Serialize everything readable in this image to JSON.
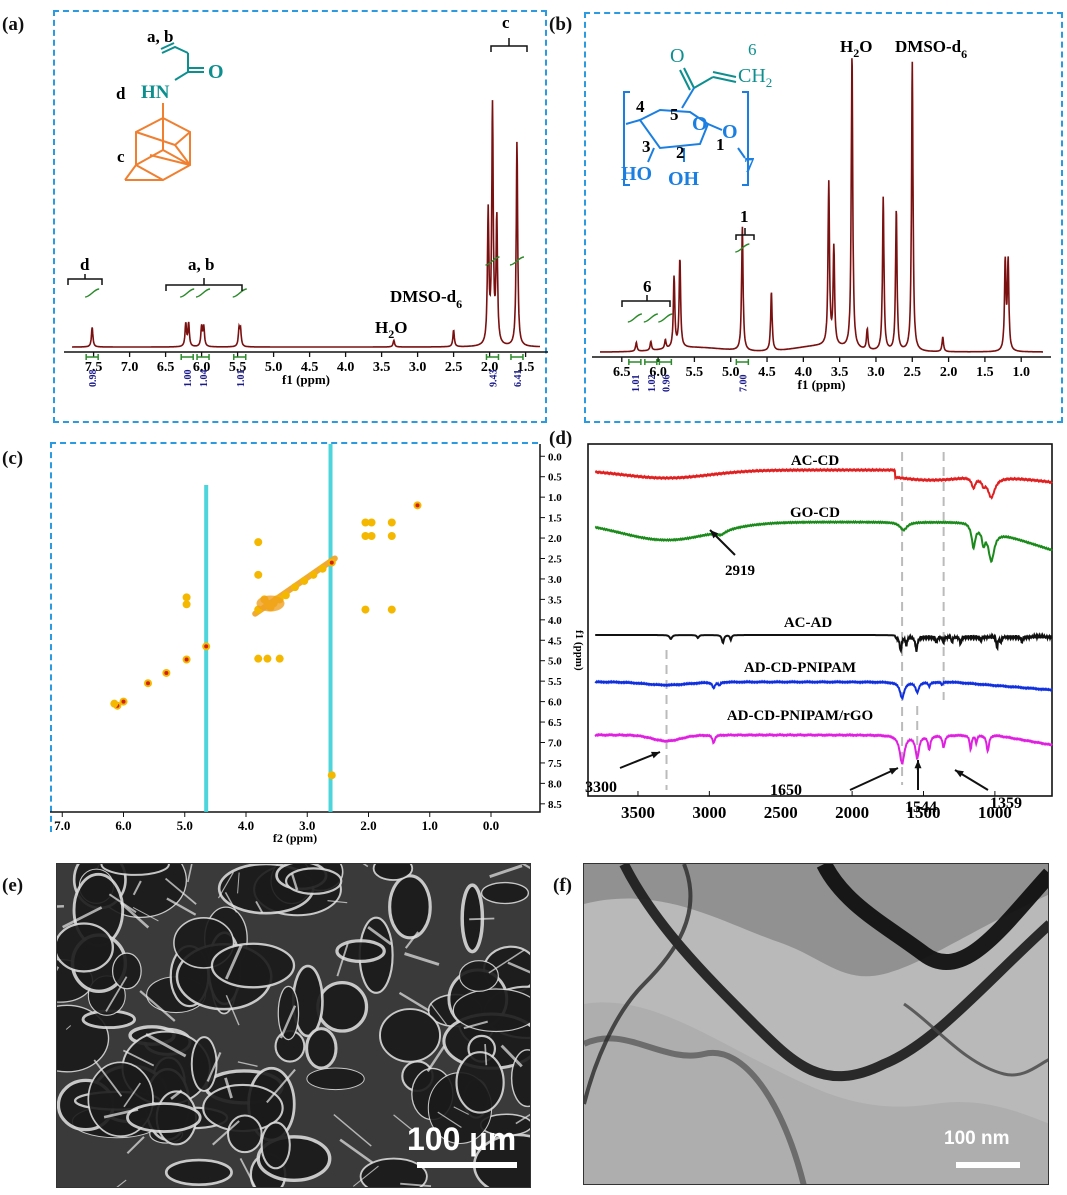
{
  "panels": {
    "a": "(a)",
    "b": "(b)",
    "c": "(c)",
    "d": "(d)",
    "e": "(e)",
    "f": "(f)"
  },
  "colors": {
    "spectrum": "#7a1010",
    "integration": "#2b8a2b",
    "frame": "#2a9be0",
    "teal": "#0e8f8f",
    "orange": "#f08030",
    "blue": "#1a7fe0",
    "ac_cd": "#e02020",
    "go_cd": "#1a8a1a",
    "ac_ad": "#111111",
    "ad_cd_pnipam": "#1030e0",
    "ad_cd_pnipam_rgo": "#e020e0"
  },
  "chart_data": [
    {
      "type": "line",
      "panel": "a",
      "xlabel": "f1 (ppm)",
      "xlim": [
        7.8,
        1.3
      ],
      "x_ticks": [
        "7.5",
        "7.0",
        "6.5",
        "6.0",
        "5.5",
        "5.0",
        "4.5",
        "4.0",
        "3.5",
        "3.0",
        "2.5",
        "2.0",
        "1.5"
      ],
      "peaks": [
        {
          "ppm": 7.52,
          "height": 0.06
        },
        {
          "ppm": 6.22,
          "height": 0.07
        },
        {
          "ppm": 6.18,
          "height": 0.07
        },
        {
          "ppm": 6.0,
          "height": 0.06
        },
        {
          "ppm": 5.97,
          "height": 0.06
        },
        {
          "ppm": 5.48,
          "height": 0.05
        },
        {
          "ppm": 5.46,
          "height": 0.05
        },
        {
          "ppm": 3.33,
          "height": 0.02
        },
        {
          "ppm": 2.5,
          "height": 0.05
        },
        {
          "ppm": 2.02,
          "height": 0.4
        },
        {
          "ppm": 1.96,
          "height": 0.72
        },
        {
          "ppm": 1.9,
          "height": 0.38
        },
        {
          "ppm": 1.62,
          "height": 0.62
        }
      ],
      "integrals": [
        {
          "ppm": 7.52,
          "value": "0.98"
        },
        {
          "ppm": 6.2,
          "value": "1.00"
        },
        {
          "ppm": 5.98,
          "value": "1.04"
        },
        {
          "ppm": 5.47,
          "value": "1.01"
        },
        {
          "ppm": 1.96,
          "value": "9.43"
        },
        {
          "ppm": 1.62,
          "value": "6.41"
        }
      ],
      "annotations": {
        "d": "d",
        "ab": "a, b",
        "c": "c",
        "h2o_base": "H",
        "h2o_sub": "2",
        "h2o_end": "O",
        "dmso_base": "DMSO-d",
        "dmso_sub": "6"
      },
      "structure": {
        "ab": "a, b",
        "nh": "HN",
        "o": "O",
        "d": "d",
        "c": "c"
      }
    },
    {
      "type": "line",
      "panel": "b",
      "xlabel": "f1 (ppm)",
      "xlim": [
        6.8,
        0.7
      ],
      "x_ticks": [
        "6.5",
        "6.0",
        "5.5",
        "5.0",
        "4.5",
        "4.0",
        "3.5",
        "3.0",
        "2.5",
        "2.0",
        "1.5",
        "1.0"
      ],
      "peaks": [
        {
          "ppm": 6.3,
          "height": 0.03
        },
        {
          "ppm": 6.1,
          "height": 0.03
        },
        {
          "ppm": 5.9,
          "height": 0.03
        },
        {
          "ppm": 5.78,
          "height": 0.24
        },
        {
          "ppm": 5.7,
          "height": 0.3
        },
        {
          "ppm": 4.84,
          "height": 0.42
        },
        {
          "ppm": 4.44,
          "height": 0.2
        },
        {
          "ppm": 3.65,
          "height": 0.55
        },
        {
          "ppm": 3.58,
          "height": 0.33
        },
        {
          "ppm": 3.33,
          "height": 1.0
        },
        {
          "ppm": 3.12,
          "height": 0.07
        },
        {
          "ppm": 2.9,
          "height": 0.52
        },
        {
          "ppm": 2.72,
          "height": 0.48
        },
        {
          "ppm": 2.5,
          "height": 0.98
        },
        {
          "ppm": 2.08,
          "height": 0.05
        },
        {
          "ppm": 1.22,
          "height": 0.3
        },
        {
          "ppm": 1.18,
          "height": 0.3
        }
      ],
      "integrals": [
        {
          "ppm": 6.32,
          "value": "1.01"
        },
        {
          "ppm": 6.1,
          "value": "1.02"
        },
        {
          "ppm": 5.9,
          "value": "0.96"
        },
        {
          "ppm": 4.84,
          "value": "7.00"
        }
      ],
      "annotations": {
        "six": "6",
        "one": "1",
        "h2o_base": "H",
        "h2o_sub": "2",
        "h2o_end": "O",
        "dmso_base": "DMSO-d",
        "dmso_sub": "6"
      },
      "structure": {
        "o": "O",
        "six": "6",
        "ch2": "CH",
        "ch2_sub": "2",
        "n4": "4",
        "n5": "5",
        "n3": "3",
        "n2": "2",
        "n1": "1",
        "ho": "HO",
        "oh": "OH",
        "o_ring": "O",
        "o_link": "O",
        "seven": "7"
      }
    },
    {
      "type": "scatter",
      "panel": "c",
      "xlabel": "f2 (ppm)",
      "ylabel": "f1 (ppm)",
      "xlim": [
        7.2,
        -0.8
      ],
      "ylim": [
        -0.3,
        8.7
      ],
      "x_ticks": [
        "7.0",
        "6.0",
        "5.0",
        "4.0",
        "3.0",
        "2.0",
        "1.0",
        "0.0"
      ],
      "y_ticks": [
        "0.0",
        "0.5",
        "1.0",
        "1.5",
        "2.0",
        "2.5",
        "3.0",
        "3.5",
        "4.0",
        "4.5",
        "5.0",
        "5.5",
        "6.0",
        "6.5",
        "7.0",
        "7.5",
        "8.0",
        "8.5"
      ],
      "vertical_streaks": [
        4.65,
        2.62
      ],
      "spots": [
        [
          1.2,
          1.2
        ],
        [
          2.6,
          2.6
        ],
        [
          2.75,
          2.75
        ],
        [
          2.9,
          2.9
        ],
        [
          3.05,
          3.05
        ],
        [
          3.2,
          3.2
        ],
        [
          3.35,
          3.4
        ],
        [
          3.5,
          3.5
        ],
        [
          3.65,
          3.6
        ],
        [
          3.8,
          3.75
        ],
        [
          3.6,
          3.7
        ],
        [
          3.7,
          3.5
        ],
        [
          3.55,
          3.6
        ],
        [
          3.45,
          3.5
        ],
        [
          4.97,
          4.97
        ],
        [
          4.65,
          4.65
        ],
        [
          5.3,
          5.3
        ],
        [
          5.6,
          5.55
        ],
        [
          6.1,
          6.1
        ],
        [
          6.15,
          6.05
        ],
        [
          6.0,
          6.0
        ],
        [
          4.97,
          3.45
        ],
        [
          4.97,
          3.62
        ],
        [
          3.45,
          4.95
        ],
        [
          3.65,
          4.95
        ],
        [
          3.8,
          4.95
        ],
        [
          2.05,
          1.62
        ],
        [
          2.05,
          1.95
        ],
        [
          1.62,
          1.62
        ],
        [
          1.62,
          1.95
        ],
        [
          1.95,
          1.62
        ],
        [
          1.95,
          1.95
        ],
        [
          2.05,
          3.75
        ],
        [
          1.62,
          3.75
        ],
        [
          2.6,
          7.8
        ],
        [
          3.8,
          2.9
        ],
        [
          3.8,
          2.1
        ]
      ]
    },
    {
      "type": "line",
      "panel": "d",
      "xlim": [
        3850,
        600
      ],
      "x_ticks": [
        "3500",
        "3000",
        "2500",
        "2000",
        "1500",
        "1000"
      ],
      "series": [
        {
          "name": "AC-CD"
        },
        {
          "name": "GO-CD"
        },
        {
          "name": "AC-AD"
        },
        {
          "name": "AD-CD-PNIPAM"
        },
        {
          "name": "AD-CD-PNIPAM/rGO"
        }
      ],
      "reference_lines": [
        3300,
        1650,
        1544,
        1359
      ],
      "annotations": [
        "2919",
        "3300",
        "1650",
        "1544",
        "1359"
      ]
    }
  ],
  "micrographs": {
    "sem_scale": "100 µm",
    "tem_scale": "100 nm"
  }
}
